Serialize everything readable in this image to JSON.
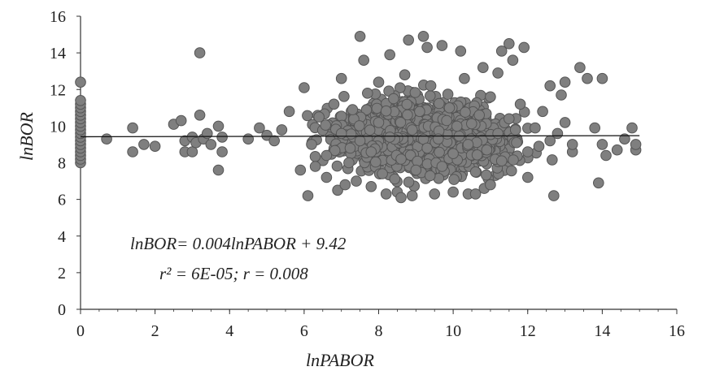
{
  "chart_data": {
    "type": "scatter",
    "title": "",
    "xlabel": "lnPABOR",
    "ylabel": "lnBOR",
    "xlim": [
      0,
      16
    ],
    "ylim": [
      0,
      16
    ],
    "x_ticks": [
      "0",
      "2",
      "4",
      "6",
      "8",
      "10",
      "12",
      "14",
      "16"
    ],
    "y_ticks": [
      "0",
      "2",
      "4",
      "6",
      "8",
      "10",
      "12",
      "14",
      "16"
    ],
    "grid": false,
    "legend": "none",
    "marker_color": "#7f7f7f",
    "marker_edge_color": "#555555",
    "trendline": {
      "slope": 0.004,
      "intercept": 9.42,
      "x_range": [
        0,
        15
      ]
    },
    "annotations": [
      "lnBOR= 0.004lnPABOR + 9.42",
      "r² = 6E-05; r = 0.008"
    ],
    "scatter_summary": {
      "note": "dense cloud of several thousand points",
      "x_dense_range": [
        5.5,
        13.5
      ],
      "y_dense_range": [
        6,
        15
      ]
    },
    "points": [
      [
        0,
        8.0
      ],
      [
        0,
        8.2
      ],
      [
        0,
        8.4
      ],
      [
        0,
        8.6
      ],
      [
        0,
        8.8
      ],
      [
        0,
        9.0
      ],
      [
        0,
        9.2
      ],
      [
        0,
        9.4
      ],
      [
        0,
        9.6
      ],
      [
        0,
        9.8
      ],
      [
        0,
        10.0
      ],
      [
        0,
        10.2
      ],
      [
        0,
        10.4
      ],
      [
        0,
        10.6
      ],
      [
        0,
        10.8
      ],
      [
        0,
        11.0
      ],
      [
        0,
        11.2
      ],
      [
        0,
        11.4
      ],
      [
        0,
        12.4
      ],
      [
        0.7,
        9.3
      ],
      [
        1.4,
        9.9
      ],
      [
        1.4,
        8.6
      ],
      [
        1.7,
        9.0
      ],
      [
        2.0,
        8.9
      ],
      [
        2.5,
        10.1
      ],
      [
        2.7,
        10.3
      ],
      [
        2.8,
        9.2
      ],
      [
        2.8,
        8.6
      ],
      [
        3.0,
        9.4
      ],
      [
        3.0,
        8.6
      ],
      [
        3.1,
        9.1
      ],
      [
        3.2,
        10.6
      ],
      [
        3.2,
        14.0
      ],
      [
        3.3,
        9.3
      ],
      [
        3.4,
        9.6
      ],
      [
        3.5,
        9.0
      ],
      [
        3.7,
        10.0
      ],
      [
        3.8,
        9.4
      ],
      [
        3.8,
        8.6
      ],
      [
        3.7,
        7.6
      ],
      [
        4.5,
        9.3
      ],
      [
        4.8,
        9.9
      ],
      [
        5.0,
        9.5
      ],
      [
        5.2,
        9.2
      ],
      [
        5.4,
        9.8
      ],
      [
        5.6,
        10.8
      ],
      [
        5.9,
        7.6
      ],
      [
        6.0,
        12.1
      ],
      [
        6.1,
        6.2
      ],
      [
        6.3,
        7.8
      ],
      [
        6.6,
        7.2
      ],
      [
        6.9,
        6.5
      ],
      [
        7.0,
        12.6
      ],
      [
        7.1,
        6.8
      ],
      [
        7.4,
        7.0
      ],
      [
        7.5,
        14.9
      ],
      [
        7.6,
        13.6
      ],
      [
        7.8,
        6.7
      ],
      [
        8.0,
        12.4
      ],
      [
        8.2,
        6.3
      ],
      [
        8.3,
        13.9
      ],
      [
        8.5,
        6.4
      ],
      [
        8.6,
        6.1
      ],
      [
        8.8,
        14.7
      ],
      [
        8.9,
        6.2
      ],
      [
        9.2,
        14.9
      ],
      [
        9.3,
        14.3
      ],
      [
        9.5,
        6.3
      ],
      [
        9.7,
        14.4
      ],
      [
        10.0,
        6.4
      ],
      [
        10.2,
        14.1
      ],
      [
        10.4,
        6.3
      ],
      [
        10.6,
        6.3
      ],
      [
        10.8,
        13.2
      ],
      [
        11.0,
        6.8
      ],
      [
        11.2,
        12.9
      ],
      [
        11.3,
        14.1
      ],
      [
        11.5,
        14.5
      ],
      [
        11.6,
        13.6
      ],
      [
        11.9,
        14.3
      ],
      [
        12.0,
        7.2
      ],
      [
        12.3,
        8.9
      ],
      [
        12.6,
        12.2
      ],
      [
        12.7,
        6.2
      ],
      [
        12.9,
        11.7
      ],
      [
        13.0,
        12.4
      ],
      [
        13.2,
        8.6
      ],
      [
        13.4,
        13.2
      ],
      [
        13.6,
        12.6
      ],
      [
        13.8,
        9.9
      ],
      [
        14.0,
        12.6
      ],
      [
        14.0,
        9.0
      ],
      [
        14.1,
        8.4
      ],
      [
        13.9,
        6.9
      ],
      [
        14.4,
        8.7
      ],
      [
        14.6,
        9.3
      ],
      [
        14.8,
        9.9
      ],
      [
        14.9,
        8.7
      ],
      [
        14.9,
        9.0
      ],
      [
        6.2,
        9.0
      ],
      [
        6.4,
        10.5
      ],
      [
        6.6,
        8.4
      ],
      [
        6.8,
        11.2
      ],
      [
        7.0,
        9.6
      ],
      [
        7.2,
        8.0
      ],
      [
        7.3,
        10.9
      ],
      [
        7.5,
        9.2
      ],
      [
        7.7,
        11.8
      ],
      [
        7.8,
        8.6
      ],
      [
        8.0,
        10.2
      ],
      [
        8.1,
        7.4
      ],
      [
        8.3,
        9.4
      ],
      [
        8.4,
        11.5
      ],
      [
        8.6,
        8.2
      ],
      [
        8.7,
        12.8
      ],
      [
        8.9,
        9.8
      ],
      [
        9.0,
        7.6
      ],
      [
        9.1,
        10.8
      ],
      [
        9.3,
        8.8
      ],
      [
        9.4,
        12.2
      ],
      [
        9.6,
        9.3
      ],
      [
        9.7,
        7.8
      ],
      [
        9.9,
        11.0
      ],
      [
        10.0,
        8.5
      ],
      [
        10.1,
        10.0
      ],
      [
        10.3,
        12.6
      ],
      [
        10.4,
        9.0
      ],
      [
        10.6,
        7.5
      ],
      [
        10.7,
        10.6
      ],
      [
        10.9,
        8.7
      ],
      [
        11.0,
        11.6
      ],
      [
        11.2,
        9.6
      ],
      [
        11.3,
        8.1
      ],
      [
        11.5,
        10.4
      ],
      [
        11.7,
        9.1
      ],
      [
        11.8,
        11.2
      ],
      [
        12.0,
        8.6
      ],
      [
        12.2,
        9.9
      ],
      [
        12.4,
        10.8
      ],
      [
        12.6,
        9.2
      ],
      [
        12.8,
        9.6
      ],
      [
        13.0,
        10.2
      ],
      [
        13.2,
        9.0
      ]
    ]
  }
}
